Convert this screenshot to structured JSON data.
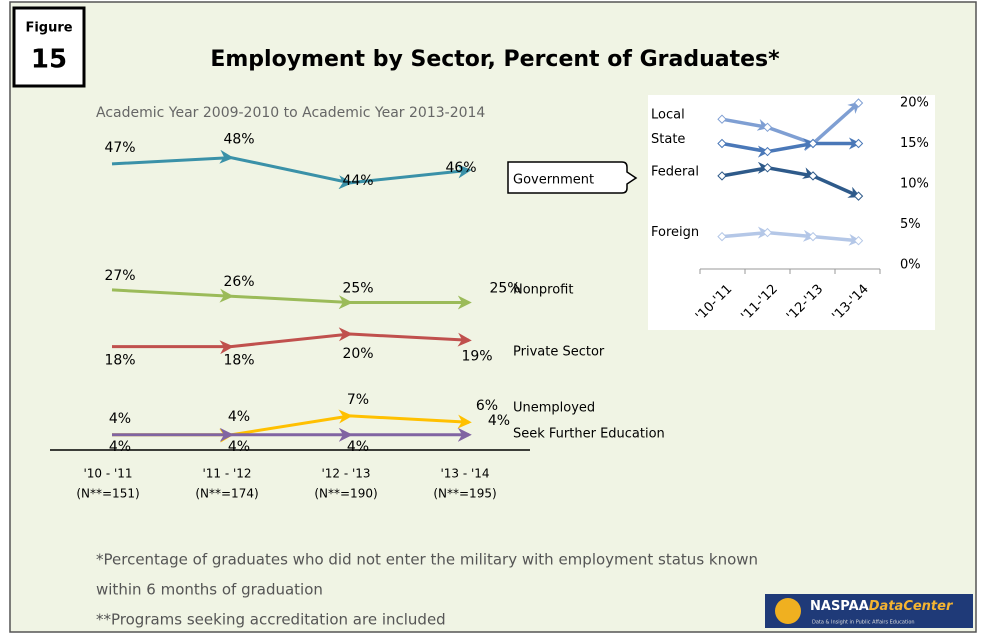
{
  "figure_label": "Figure",
  "figure_number": "15",
  "chart_data": [
    {
      "type": "line",
      "title": "Employment by Sector, Percent of Graduates*",
      "subtitle": "Academic Year 2009-2010 to Academic Year 2013-2014",
      "categories": [
        "'10 - '11",
        "'11 - '12",
        "'12 - '13",
        "'13 - '14"
      ],
      "category_notes": [
        "(N**=151)",
        "(N**=174)",
        "(N**=190)",
        "(N**=195)"
      ],
      "series": [
        {
          "name": "Government",
          "color": "#3a91a8",
          "values": [
            47,
            48,
            44,
            46
          ],
          "value_labels": [
            "47%",
            "48%",
            "44%",
            "46%"
          ]
        },
        {
          "name": "Nonprofit",
          "color": "#9bbb59",
          "values": [
            27,
            26,
            25,
            25
          ],
          "value_labels": [
            "27%",
            "26%",
            "25%",
            "25%"
          ]
        },
        {
          "name": "Private Sector",
          "color": "#c0504d",
          "values": [
            18,
            18,
            20,
            19
          ],
          "value_labels": [
            "18%",
            "18%",
            "20%",
            "19%"
          ]
        },
        {
          "name": "Unemployed",
          "color": "#ffc000",
          "values": [
            4,
            4,
            7,
            6
          ],
          "value_labels": [
            "4%",
            "4%",
            "7%",
            "6%"
          ]
        },
        {
          "name": "Seek Further Education",
          "color": "#8064a2",
          "values": [
            4,
            4,
            4,
            4
          ],
          "value_labels": [
            "4%",
            "4%",
            "4%",
            "4%"
          ]
        }
      ],
      "footnotes": [
        "*Percentage of graduates who did not enter the military with employment status known",
        "within 6 months of graduation",
        "**Programs seeking accreditation are included"
      ]
    },
    {
      "type": "line",
      "categories": [
        "'10-'11",
        "'11-'12",
        "'12-'13",
        "'13-'14"
      ],
      "ylim": [
        0,
        20
      ],
      "yticks": [
        {
          "value": 0,
          "label": "0%"
        },
        {
          "value": 5,
          "label": "5%"
        },
        {
          "value": 10,
          "label": "10%"
        },
        {
          "value": 15,
          "label": "15%"
        },
        {
          "value": 20,
          "label": "20%"
        }
      ],
      "series": [
        {
          "name": "Local",
          "color": "#7f9fd3",
          "values": [
            18,
            17,
            15,
            20
          ]
        },
        {
          "name": "State",
          "color": "#4a78b8",
          "values": [
            15,
            14,
            15,
            15
          ]
        },
        {
          "name": "Federal",
          "color": "#2e5a8a",
          "values": [
            11,
            12,
            11,
            8.5
          ]
        },
        {
          "name": "Foreign",
          "color": "#b4c7e7",
          "values": [
            3.5,
            4,
            3.5,
            3
          ]
        }
      ]
    }
  ],
  "logo": {
    "name_a": "NASPAA",
    "name_b": "DataCenter",
    "tagline": "Data & Insight in Public Affairs Education"
  }
}
